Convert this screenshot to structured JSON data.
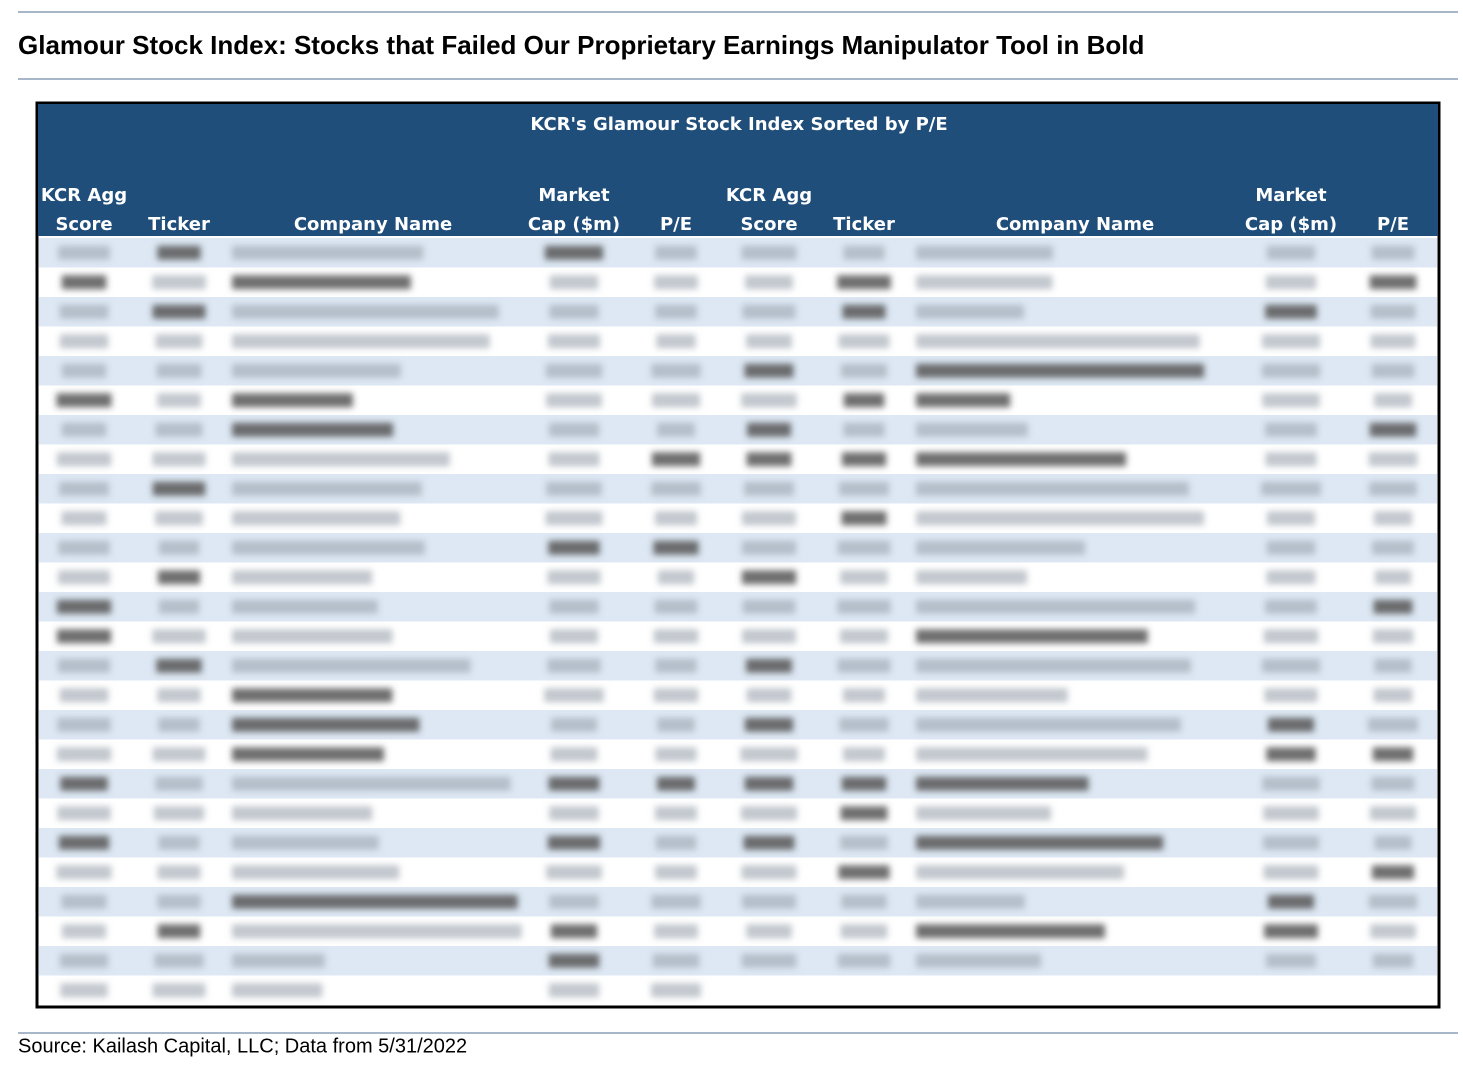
{
  "header": {
    "title": "Glamour Stock Index: Stocks that Failed Our Proprietary Earnings Manipulator Tool in Bold"
  },
  "table": {
    "title": "KCR's Glamour Stock Index Sorted by P/E",
    "columns": [
      {
        "lines": [
          "KCR Agg",
          "Score"
        ]
      },
      {
        "lines": [
          "Ticker"
        ]
      },
      {
        "lines": [
          "Company Name"
        ]
      },
      {
        "lines": [
          "Market",
          "Cap ($m)"
        ]
      },
      {
        "lines": [
          "P/E"
        ]
      },
      {
        "lines": [
          "KCR Agg",
          "Score"
        ]
      },
      {
        "lines": [
          "Ticker"
        ]
      },
      {
        "lines": [
          "Company Name"
        ]
      },
      {
        "lines": [
          "Market",
          "Cap ($m)"
        ]
      },
      {
        "lines": [
          "P/E"
        ]
      }
    ]
  },
  "footer": {
    "source": "Source: Kailash Capital, LLC; Data from 5/31/2022"
  }
}
